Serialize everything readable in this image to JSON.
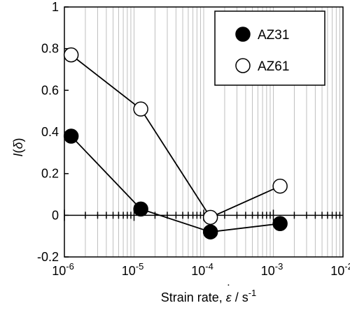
{
  "chart_data": {
    "type": "scatter",
    "x_scale": "log",
    "xlim": [
      1e-06,
      0.01
    ],
    "ylim": [
      -0.2,
      1
    ],
    "x_ticks": [
      1e-06,
      1e-05,
      0.0001,
      0.001,
      0.01
    ],
    "x_tick_labels": [
      {
        "base": "10",
        "exp": "-6"
      },
      {
        "base": "10",
        "exp": "-5"
      },
      {
        "base": "10",
        "exp": "-4"
      },
      {
        "base": "10",
        "exp": "-3"
      },
      {
        "base": "10",
        "exp": "-2"
      }
    ],
    "y_ticks": [
      -0.2,
      0,
      0.2,
      0.4,
      0.6,
      0.8,
      1
    ],
    "y_tick_labels": [
      "-0.2",
      "0",
      "0.2",
      "0.4",
      "0.6",
      "0.8",
      "1"
    ],
    "xlabel": {
      "prefix": "Strain rate, ",
      "symbol": "ε",
      "unit_prefix": " / s",
      "unit_exp": "-1"
    },
    "ylabel": {
      "func": "I",
      "open": "(",
      "arg": "δ",
      "close": ")"
    },
    "grid": {
      "x_minor": true,
      "y": false
    },
    "legend_position": "top-right",
    "series": [
      {
        "name": "AZ31",
        "marker": "filled-circle",
        "color": "#000000",
        "x": [
          1.25e-06,
          1.25e-05,
          0.000125,
          0.00125
        ],
        "y": [
          0.38,
          0.03,
          -0.08,
          -0.04
        ]
      },
      {
        "name": "AZ61",
        "marker": "open-circle",
        "color": "#000000",
        "x": [
          1.25e-06,
          1.25e-05,
          0.000125,
          0.00125
        ],
        "y": [
          0.77,
          0.51,
          -0.01,
          0.14
        ]
      }
    ]
  }
}
